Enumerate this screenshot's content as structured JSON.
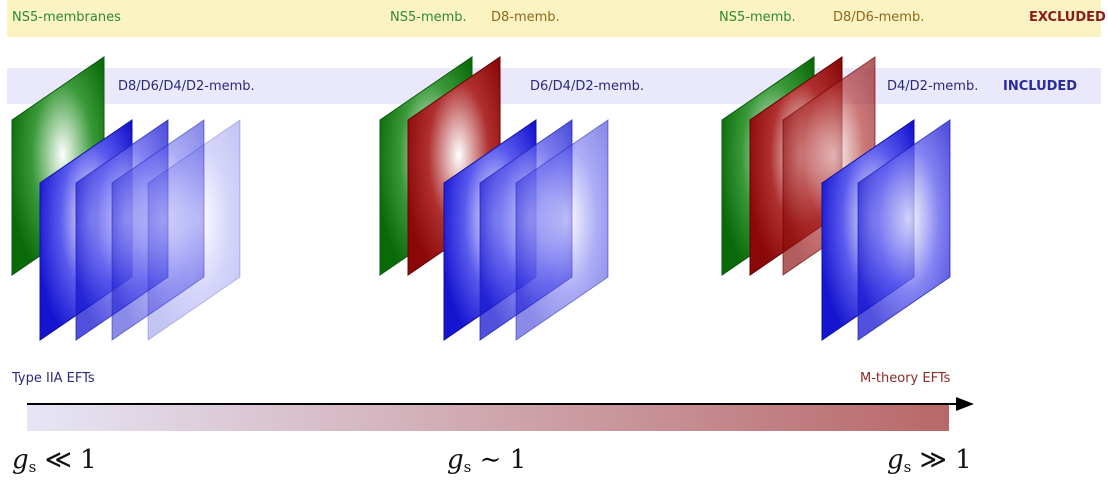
{
  "excluded_row": {
    "labels": [
      "NS5-membranes",
      "NS5-memb.",
      "D8-memb.",
      "NS5-memb.",
      "D8/D6-memb."
    ],
    "status": "EXCLUDED"
  },
  "included_row": {
    "labels": [
      "D8/D6/D4/D2-memb.",
      "D6/D4/D2-memb.",
      "D4/D2-memb."
    ],
    "status": "INCLUDED"
  },
  "axis": {
    "left_label": "Type IIA EFTs",
    "right_label": "M-theory EFTs"
  },
  "regimes": [
    {
      "symbol": "g",
      "subscript": "s",
      "relation": "≪",
      "value": "1"
    },
    {
      "symbol": "g",
      "subscript": "s",
      "relation": "∼",
      "value": "1"
    },
    {
      "symbol": "g",
      "subscript": "s",
      "relation": "≫",
      "value": "1"
    }
  ],
  "colors": {
    "ns5_membrane": "#0a7a0a",
    "d8_d6_membrane": "#9b0a0a",
    "d_membrane": "#2222dd",
    "excluded_band": "#fbf3c1",
    "included_band": "#e9e9fb"
  }
}
